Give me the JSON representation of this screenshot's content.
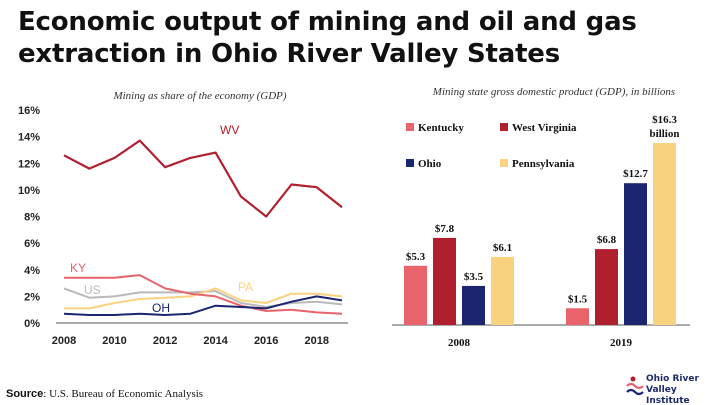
{
  "title": "Economic output of mining and oil and gas extraction in Ohio River Valley States",
  "source_label": "Source",
  "source_text": ": U.S. Bureau of Economic Analysis",
  "logo": {
    "line1": "Ohio River",
    "line2": "Valley Institute"
  },
  "colors": {
    "kentucky": "#e8636a",
    "west_virginia": "#b01f2e",
    "ohio": "#1b2570",
    "pennsylvania": "#f9d27f",
    "us": "#b9b9b9"
  },
  "chart_data": [
    {
      "type": "line",
      "title": "Mining as share of the economy (GDP)",
      "x": [
        2008,
        2009,
        2010,
        2011,
        2012,
        2013,
        2014,
        2015,
        2016,
        2017,
        2018,
        2019
      ],
      "xticks": [
        "2008",
        "2010",
        "2012",
        "2014",
        "2016",
        "2018"
      ],
      "yticks": [
        "0%",
        "2%",
        "4%",
        "6%",
        "8%",
        "10%",
        "12%",
        "14%",
        "16%"
      ],
      "ylim": [
        0,
        16
      ],
      "grid": false,
      "series": [
        {
          "name": "WV",
          "color_key": "west_virginia",
          "values": [
            12.6,
            11.6,
            12.4,
            13.7,
            11.7,
            12.4,
            12.8,
            9.5,
            8.0,
            10.4,
            10.2,
            8.7
          ]
        },
        {
          "name": "KY",
          "color_key": "kentucky",
          "values": [
            3.4,
            3.4,
            3.4,
            3.6,
            2.6,
            2.2,
            2.0,
            1.3,
            0.9,
            1.0,
            0.8,
            0.7
          ]
        },
        {
          "name": "US",
          "color_key": "us",
          "values": [
            2.6,
            1.9,
            2.0,
            2.3,
            2.3,
            2.3,
            2.4,
            1.5,
            1.2,
            1.5,
            1.6,
            1.4
          ]
        },
        {
          "name": "PA",
          "color_key": "pennsylvania",
          "values": [
            1.1,
            1.1,
            1.5,
            1.8,
            1.9,
            2.0,
            2.6,
            1.7,
            1.5,
            2.2,
            2.2,
            2.0
          ]
        },
        {
          "name": "OH",
          "color_key": "ohio",
          "values": [
            0.7,
            0.6,
            0.6,
            0.7,
            0.6,
            0.7,
            1.3,
            1.2,
            1.1,
            1.6,
            2.0,
            1.7
          ]
        }
      ]
    },
    {
      "type": "bar",
      "title": "Mining state gross domestic product (GDP), in billions",
      "categories": [
        "2008",
        "2019"
      ],
      "ylim": [
        0,
        16.3
      ],
      "legend_position": "top",
      "series": [
        {
          "name": "Kentucky",
          "color_key": "kentucky",
          "values": [
            5.3,
            1.5
          ],
          "labels": [
            "$5.3",
            "$1.5"
          ]
        },
        {
          "name": "West Virginia",
          "color_key": "west_virginia",
          "values": [
            7.8,
            6.8
          ],
          "labels": [
            "$7.8",
            "$6.8"
          ]
        },
        {
          "name": "Ohio",
          "color_key": "ohio",
          "values": [
            3.5,
            12.7
          ],
          "labels": [
            "$3.5",
            "$12.7"
          ]
        },
        {
          "name": "Pennsylvania",
          "color_key": "pennsylvania",
          "values": [
            6.1,
            16.3
          ],
          "labels": [
            "$6.1",
            "$16.3 billion"
          ]
        }
      ]
    }
  ]
}
